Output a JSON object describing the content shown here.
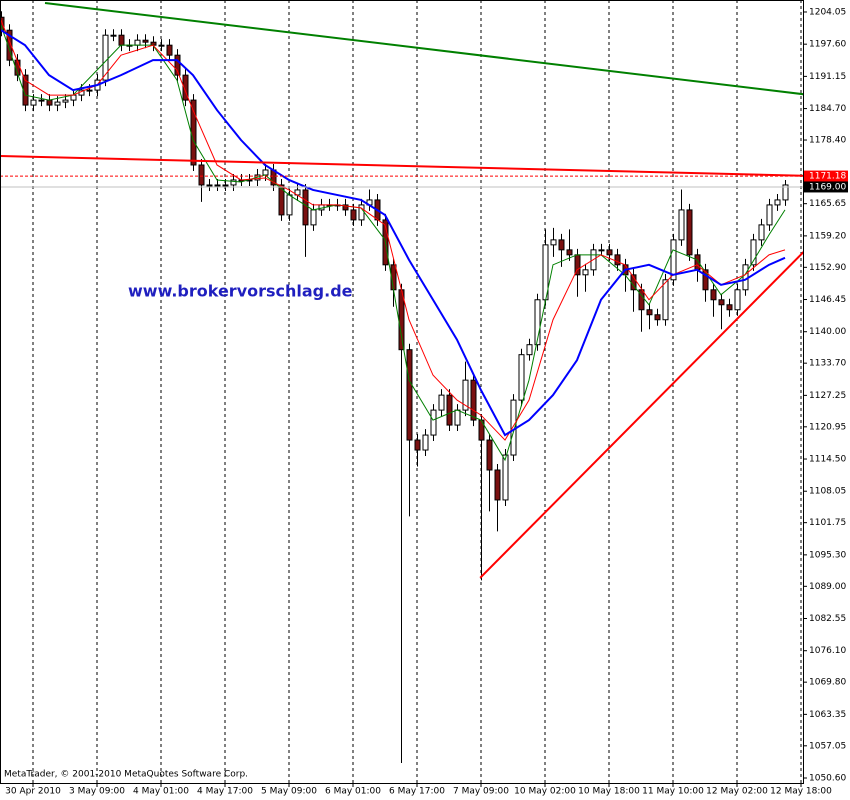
{
  "chart_data": {
    "type": "candlestick",
    "watermark": "www.brokervorschlag.de",
    "footer": "MetaTrader, © 2001-2010 MetaQuotes Software Corp.",
    "categories": [
      null,
      null,
      null,
      null,
      "30 Apr 2010",
      null,
      null,
      null,
      null,
      null,
      null,
      null,
      "3 May 09:00",
      null,
      null,
      null,
      null,
      null,
      null,
      null,
      "4 May 01:00",
      null,
      null,
      null,
      null,
      null,
      null,
      null,
      "4 May 17:00",
      null,
      null,
      null,
      null,
      null,
      null,
      null,
      "5 May 09:00",
      null,
      null,
      null,
      null,
      null,
      null,
      null,
      "6 May 01:00",
      null,
      null,
      null,
      null,
      null,
      null,
      null,
      "6 May 17:00",
      null,
      null,
      null,
      null,
      null,
      null,
      null,
      "7 May 09:00",
      null,
      null,
      null,
      null,
      null,
      null,
      null,
      "10 May 02:00",
      null,
      null,
      null,
      null,
      null,
      null,
      null,
      "10 May 18:00",
      null,
      null,
      null,
      null,
      null,
      null,
      null,
      "11 May 10:00",
      null,
      null,
      null,
      null,
      null,
      null,
      null,
      "12 May 02:00",
      null,
      null,
      null,
      null,
      null,
      null,
      null,
      "12 May 18:00"
    ],
    "open": [
      1203.0,
      1200.4,
      1194.4,
      1191.4,
      1185.4,
      1186.4,
      1186.4,
      1185.4,
      1186.0,
      1186.4,
      1187.4,
      1188.4,
      1188.4,
      1190.4,
      1199.4,
      1199.4,
      1197.4,
      1197.4,
      1198.4,
      1198.0,
      1197.4,
      1197.4,
      1195.4,
      1191.4,
      1186.4,
      1173.4,
      1169.4,
      1169.4,
      1169.4,
      1169.4,
      1170.4,
      1170.4,
      1170.4,
      1171.4,
      1172.4,
      1169.4,
      1163.4,
      1167.4,
      1168.4,
      1161.4,
      1164.4,
      1165.4,
      1165.4,
      1165.4,
      1164.4,
      1162.4,
      1165.4,
      1166.4,
      1162.4,
      1153.4,
      1148.4,
      1136.4,
      1118.3,
      1116.3,
      1119.3,
      1124.3,
      1127.3,
      1121.3,
      1124.3,
      1130.3,
      1122.3,
      1118.3,
      1112.3,
      1106.3,
      1115.3,
      1126.3,
      1135.4,
      1137.4,
      1146.4,
      1157.4,
      1158.4,
      1156.4,
      1155.4,
      1151.4,
      1152.4,
      1156.4,
      1156.4,
      1155.4,
      1153.4,
      1151.4,
      1148.4,
      1144.4,
      1143.4,
      1142.4,
      1150.4,
      1158.4,
      1164.4,
      1155.4,
      1152.4,
      1148.4,
      1146.4,
      1145.4,
      1144.4,
      1148.4,
      1153.4,
      1158.4,
      1161.4,
      1165.4,
      1166.4,
      null,
      null
    ],
    "high": [
      1204.2,
      1201.6,
      1195.6,
      1192.6,
      1187.6,
      1187.6,
      1187.6,
      1187.2,
      1187.6,
      1188.6,
      1189.6,
      1189.6,
      1191.6,
      1200.6,
      1200.6,
      1200.6,
      1198.6,
      1199.6,
      1199.6,
      1199.2,
      1198.6,
      1198.6,
      1196.6,
      1192.6,
      1187.6,
      1174.6,
      1170.6,
      1170.6,
      1170.6,
      1171.6,
      1171.6,
      1171.6,
      1172.6,
      1173.6,
      1173.6,
      1170.6,
      1168.6,
      1169.6,
      1169.6,
      1165.6,
      1166.6,
      1166.6,
      1166.6,
      1166.6,
      1165.6,
      1166.6,
      1168.5,
      1167.6,
      1163.6,
      1154.6,
      1149.6,
      1137.6,
      1119.5,
      1120.5,
      1125.5,
      1128.5,
      1128.5,
      1125.5,
      1134.0,
      1131.5,
      1123.5,
      1119.5,
      1113.5,
      1116.5,
      1127.5,
      1136.6,
      1138.6,
      1147.6,
      1160.5,
      1160.8,
      1159.6,
      1160.5,
      1156.6,
      1153.6,
      1157.6,
      1157.6,
      1157.6,
      1156.6,
      1154.6,
      1152.6,
      1149.6,
      1145.6,
      1144.6,
      1151.6,
      1159.6,
      1168.5,
      1165.6,
      1156.6,
      1153.6,
      1149.6,
      1147.6,
      1146.6,
      1149.6,
      1154.6,
      1159.6,
      1162.6,
      1166.6,
      1167.6,
      1170.4,
      null,
      null
    ],
    "low": [
      1199.2,
      1193.2,
      1190.2,
      1184.2,
      1184.2,
      1185.2,
      1184.2,
      1184.2,
      1184.8,
      1185.2,
      1186.2,
      1187.2,
      1187.2,
      1189.2,
      1198.2,
      1196.2,
      1196.2,
      1196.2,
      1196.8,
      1196.2,
      1196.2,
      1194.2,
      1190.2,
      1185.2,
      1172.2,
      1166.0,
      1168.2,
      1168.2,
      1168.2,
      1168.2,
      1169.2,
      1169.2,
      1169.2,
      1170.2,
      1168.2,
      1162.2,
      1162.2,
      1166.2,
      1155.0,
      1160.2,
      1163.2,
      1164.2,
      1164.2,
      1163.2,
      1161.2,
      1161.2,
      1164.2,
      1161.2,
      1152.2,
      1145.0,
      1053.6,
      1103.0,
      1113.0,
      1115.1,
      1118.1,
      1123.1,
      1120.1,
      1120.1,
      1123.1,
      1121.1,
      1090.2,
      1104.0,
      1100.0,
      1105.1,
      1114.1,
      1125.1,
      1134.2,
      1136.2,
      1145.2,
      1155.0,
      1153.0,
      1154.2,
      1147.0,
      1148.0,
      1151.2,
      1155.2,
      1154.2,
      1152.2,
      1148.0,
      1144.0,
      1140.0,
      1140.5,
      1141.2,
      1141.2,
      1149.2,
      1157.2,
      1154.2,
      1150.0,
      1146.0,
      1143.0,
      1140.5,
      1143.0,
      1143.2,
      1147.2,
      1152.2,
      1157.2,
      1160.2,
      1164.2,
      1165.2,
      null,
      null
    ],
    "close": [
      1200.4,
      1194.4,
      1191.4,
      1185.4,
      1186.4,
      1186.4,
      1185.4,
      1186.0,
      1186.4,
      1187.4,
      1188.4,
      1188.4,
      1190.4,
      1199.4,
      1199.4,
      1197.4,
      1197.4,
      1198.4,
      1198.0,
      1197.4,
      1197.4,
      1195.4,
      1191.4,
      1186.4,
      1173.4,
      1169.4,
      1169.4,
      1169.4,
      1169.4,
      1170.4,
      1170.4,
      1170.4,
      1171.4,
      1172.4,
      1169.4,
      1163.4,
      1167.4,
      1168.4,
      1161.4,
      1164.4,
      1165.4,
      1165.4,
      1165.4,
      1164.4,
      1162.4,
      1165.4,
      1166.4,
      1162.4,
      1153.4,
      1148.4,
      1136.4,
      1118.3,
      1116.3,
      1119.3,
      1124.3,
      1127.3,
      1121.3,
      1124.3,
      1130.3,
      1122.3,
      1118.3,
      1112.3,
      1106.3,
      1115.3,
      1126.3,
      1135.4,
      1137.4,
      1146.4,
      1157.4,
      1158.4,
      1156.4,
      1155.4,
      1151.4,
      1152.4,
      1156.4,
      1156.4,
      1155.4,
      1153.4,
      1151.4,
      1148.4,
      1144.4,
      1143.4,
      1142.4,
      1150.4,
      1158.4,
      1164.4,
      1155.4,
      1152.4,
      1148.4,
      1146.4,
      1145.4,
      1144.4,
      1148.4,
      1153.4,
      1158.4,
      1161.4,
      1165.4,
      1166.4,
      1169.4,
      null,
      null
    ],
    "up_color": "#ffffff",
    "down_color": "#7a1010",
    "outline_color": "#000000",
    "lines": [
      {
        "color": "#008000",
        "width": 1,
        "x": [
          0,
          3,
          6,
          9,
          12,
          15,
          19,
          22,
          24,
          27,
          30,
          33,
          36,
          39,
          42,
          45,
          48,
          51,
          54,
          57,
          60,
          63,
          66,
          69,
          72,
          75,
          78,
          81,
          84,
          87,
          90,
          93,
          96,
          98
        ],
        "values": [
          1201.4,
          1187.4,
          1186.4,
          1187.4,
          1192.4,
          1197.4,
          1197.4,
          1190.4,
          1178.4,
          1170.4,
          1170.0,
          1171.4,
          1167.4,
          1164.4,
          1165.4,
          1164.8,
          1158.4,
          1130.3,
          1122.3,
          1124.3,
          1122.3,
          1114.3,
          1130.3,
          1153.4,
          1155.4,
          1155.4,
          1151.4,
          1145.4,
          1156.4,
          1154.4,
          1147.4,
          1151.4,
          1159.4,
          1164.4
        ]
      },
      {
        "color": "#ff0000",
        "width": 1,
        "x": [
          0,
          3,
          6,
          9,
          12,
          15,
          19,
          22,
          24,
          27,
          30,
          33,
          36,
          39,
          42,
          45,
          48,
          51,
          54,
          57,
          60,
          63,
          66,
          69,
          72,
          75,
          78,
          81,
          84,
          87,
          90,
          93,
          96,
          98
        ],
        "values": [
          1202.4,
          1190.4,
          1187.4,
          1187.4,
          1189.4,
          1195.4,
          1197.4,
          1192.4,
          1184.4,
          1173.4,
          1170.4,
          1170.8,
          1168.4,
          1165.4,
          1165.4,
          1164.8,
          1161.4,
          1142.4,
          1131.3,
          1126.3,
          1123.3,
          1118.3,
          1126.3,
          1142.4,
          1152.4,
          1155.4,
          1153.4,
          1146.4,
          1151.4,
          1153.4,
          1149.4,
          1151.4,
          1155.4,
          1156.4
        ]
      },
      {
        "color": "#0000ff",
        "width": 2,
        "x": [
          0,
          3,
          6,
          9,
          12,
          15,
          19,
          22,
          24,
          27,
          30,
          33,
          36,
          39,
          42,
          45,
          48,
          51,
          54,
          57,
          60,
          63,
          66,
          69,
          72,
          75,
          78,
          81,
          84,
          87,
          90,
          93,
          96,
          98
        ],
        "values": [
          1200.4,
          1197.4,
          1191.4,
          1188.4,
          1189.4,
          1191.4,
          1194.4,
          1194.4,
          1191.4,
          1184.4,
          1178.4,
          1173.4,
          1170.4,
          1168.4,
          1167.4,
          1166.4,
          1163.4,
          1154.4,
          1146.4,
          1138.4,
          1128.3,
          1119.3,
          1122.3,
          1127.3,
          1134.3,
          1146.4,
          1152.4,
          1153.4,
          1151.4,
          1152.4,
          1149.4,
          1150.4,
          1153.4,
          1154.8
        ]
      },
      {
        "color": "#008000",
        "width": 2,
        "x": [
          5.5,
          101.2
        ],
        "values": [
          1205.85,
          1187.4
        ]
      },
      {
        "color": "#ff0000",
        "width": 2,
        "x": [
          -0.1,
          101.2
        ],
        "values": [
          1175.2,
          1171.2
        ]
      },
      {
        "color": "#ff0000",
        "width": 2,
        "x": [
          59.9,
          101.2
        ],
        "values": [
          1090.7,
          1157.4
        ]
      }
    ],
    "price_lines": [
      {
        "value": 1171.18,
        "label": "1171.18",
        "color": "#ff0000",
        "dashed": true
      },
      {
        "value": 1169.0,
        "label": "1169.00",
        "color": "#c0c0c0",
        "label_bg": "#000000",
        "dashed": false
      }
    ],
    "ylim": [
      1049.6,
      1206.45
    ],
    "yticks": [
      {
        "value": 1204.05,
        "label": "1204.05"
      },
      {
        "value": 1197.6,
        "label": "1197.60"
      },
      {
        "value": 1191.15,
        "label": "1191.15"
      },
      {
        "value": 1184.7,
        "label": "1184.70"
      },
      {
        "value": 1178.4,
        "label": "1178.40"
      },
      {
        "value": 1165.65,
        "label": "1165.65"
      },
      {
        "value": 1159.2,
        "label": "1159.20"
      },
      {
        "value": 1152.9,
        "label": "1152.90"
      },
      {
        "value": 1146.45,
        "label": "1146.45"
      },
      {
        "value": 1140.0,
        "label": "1140.00"
      },
      {
        "value": 1133.7,
        "label": "1133.70"
      },
      {
        "value": 1127.25,
        "label": "1127.25"
      },
      {
        "value": 1120.95,
        "label": "1120.95"
      },
      {
        "value": 1114.5,
        "label": "1114.50"
      },
      {
        "value": 1108.05,
        "label": "1108.05"
      },
      {
        "value": 1101.75,
        "label": "1101.75"
      },
      {
        "value": 1095.3,
        "label": "1095.30"
      },
      {
        "value": 1089.0,
        "label": "1089.00"
      },
      {
        "value": 1082.55,
        "label": "1082.55"
      },
      {
        "value": 1076.1,
        "label": "1076.10"
      },
      {
        "value": 1069.8,
        "label": "1069.80"
      },
      {
        "value": 1063.35,
        "label": "1063.35"
      },
      {
        "value": 1057.05,
        "label": "1057.05"
      },
      {
        "value": 1050.6,
        "label": "1050.60"
      }
    ],
    "grid": true
  }
}
